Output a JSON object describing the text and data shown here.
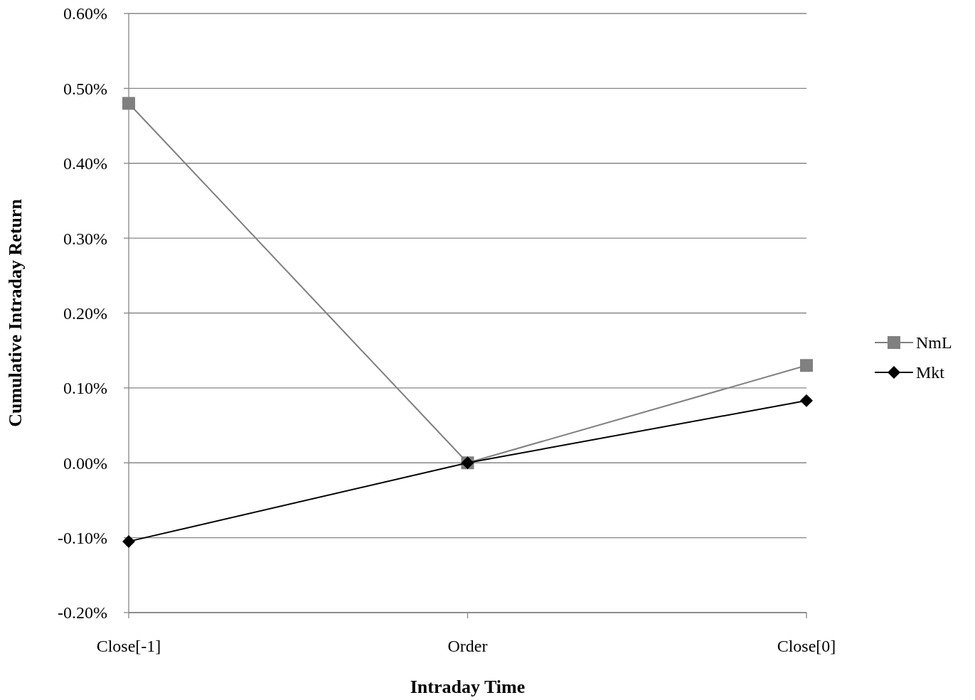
{
  "chart_data": {
    "type": "line",
    "xlabel": "Intraday Time",
    "ylabel": "Cumulative Intraday Return",
    "categories": [
      "Close[-1]",
      "Order",
      "Close[0]"
    ],
    "series": [
      {
        "name": "NmL",
        "color": "#808080",
        "marker": "square",
        "values": [
          0.48,
          0,
          0.13
        ]
      },
      {
        "name": "Mkt",
        "color": "#000000",
        "marker": "diamond",
        "values": [
          -0.105,
          0,
          0.083
        ]
      }
    ],
    "ylim": [
      -0.2,
      0.6
    ],
    "yticks": [
      {
        "value": -0.2,
        "label": "-0.20%"
      },
      {
        "value": -0.1,
        "label": "-0.10%"
      },
      {
        "value": 0,
        "label": "0.00%"
      },
      {
        "value": 0.1,
        "label": "0.10%"
      },
      {
        "value": 0.2,
        "label": "0.20%"
      },
      {
        "value": 0.3,
        "label": "0.30%"
      },
      {
        "value": 0.4,
        "label": "0.40%"
      },
      {
        "value": 0.5,
        "label": "0.50%"
      },
      {
        "value": 0.6,
        "label": "0.60%"
      }
    ],
    "grid": "y",
    "legend": "right",
    "line_style": "solid"
  }
}
